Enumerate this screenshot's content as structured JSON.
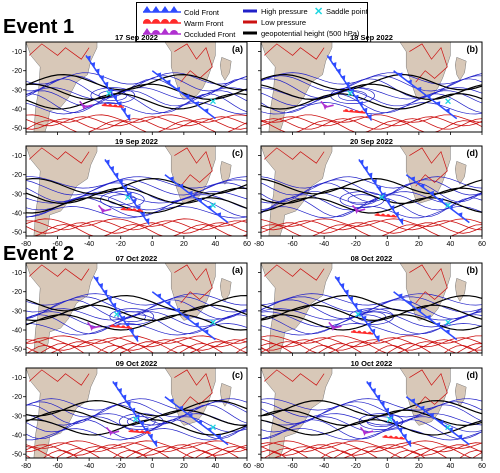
{
  "legend": {
    "items": [
      {
        "label": "Cold Front",
        "color": "#2e4bff",
        "symbol": "cold-front"
      },
      {
        "label": "Warm Front",
        "color": "#ff2a2a",
        "symbol": "warm-front"
      },
      {
        "label": "Occluded Front",
        "color": "#b030d0",
        "symbol": "occluded-front"
      },
      {
        "label": "High pressure",
        "color": "#2020c8",
        "symbol": "line"
      },
      {
        "label": "Low pressure",
        "color": "#cc1111",
        "symbol": "line"
      },
      {
        "label": "geopotential height (500 hPa)",
        "color": "#000000",
        "symbol": "line"
      },
      {
        "label": "Saddle point",
        "color": "#1cd6e0",
        "symbol": "x-mark"
      }
    ]
  },
  "events": [
    {
      "title": "Event 1",
      "panels": [
        {
          "date": "17 Sep 2022",
          "letter": "(a)"
        },
        {
          "date": "18 Sep 2022",
          "letter": "(b)"
        },
        {
          "date": "19 Sep 2022",
          "letter": "(c)"
        },
        {
          "date": "20 Sep 2022",
          "letter": "(d)"
        }
      ]
    },
    {
      "title": "Event 2",
      "panels": [
        {
          "date": "07 Oct 2022",
          "letter": "(a)"
        },
        {
          "date": "08 Oct 2022",
          "letter": "(b)"
        },
        {
          "date": "09 Oct 2022",
          "letter": "(c)"
        },
        {
          "date": "10 Oct 2022",
          "letter": "(d)"
        }
      ]
    }
  ],
  "axes": {
    "x_ticks_left": [
      "-80",
      "-60",
      "-40",
      "-20",
      "0",
      "20",
      "40",
      "60"
    ],
    "x_ticks_right": [
      "-80",
      "-60",
      "-40",
      "-20",
      "0",
      "20",
      "40",
      "60"
    ],
    "y_ticks": [
      "-10",
      "-20",
      "-30",
      "-40",
      "-50"
    ]
  },
  "colors": {
    "land": "#d8c8b8",
    "high_pressure": "#2020c8",
    "low_pressure": "#cc1111",
    "geopotential": "#000000",
    "cold_front": "#2e4bff",
    "warm_front": "#ff2a2a",
    "occluded_front": "#b030d0",
    "saddle": "#1cd6e0"
  }
}
